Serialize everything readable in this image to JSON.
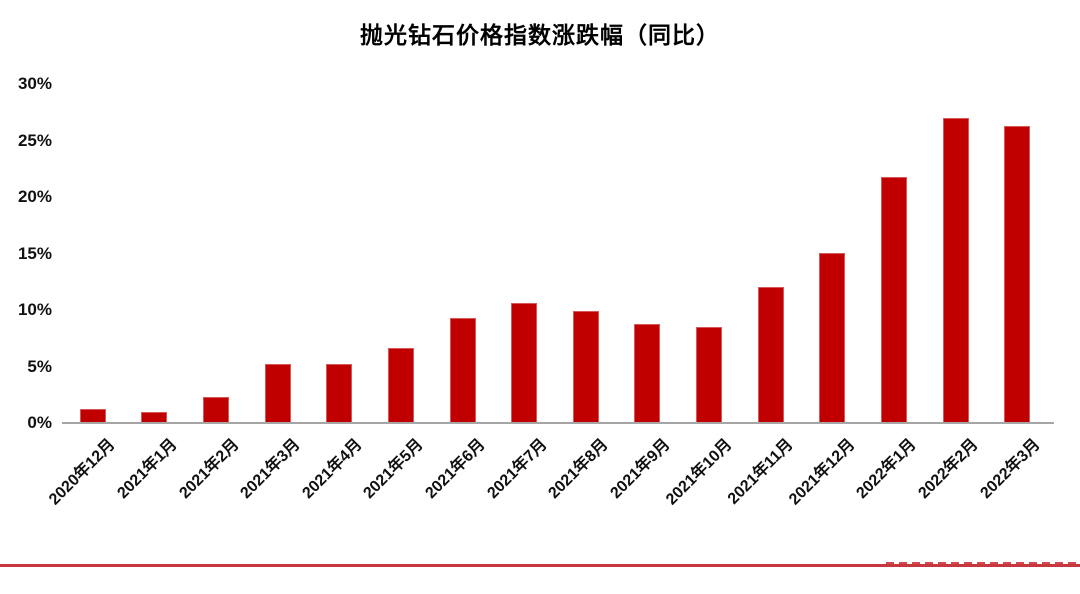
{
  "chart_data": {
    "type": "bar",
    "title": "抛光钻石价格指数涨跌幅（同比）",
    "categories": [
      "2020年12月",
      "2021年1月",
      "2021年2月",
      "2021年3月",
      "2021年4月",
      "2021年5月",
      "2021年6月",
      "2021年7月",
      "2021年8月",
      "2021年9月",
      "2021年10月",
      "2021年11月",
      "2021年12月",
      "2022年1月",
      "2022年2月",
      "2022年3月"
    ],
    "values": [
      1.2,
      1.0,
      2.3,
      5.2,
      5.2,
      6.6,
      9.3,
      10.6,
      9.9,
      8.8,
      8.5,
      12.0,
      15.0,
      21.8,
      27.0,
      26.3
    ],
    "unit": "%",
    "xlabel": "",
    "ylabel": "",
    "ylim": [
      0,
      30
    ],
    "ytick_labels": [
      "0%",
      "5%",
      "10%",
      "15%",
      "20%",
      "25%",
      "30%"
    ],
    "grid": false,
    "legend": "none",
    "x_label_rotation_deg": 45,
    "bar_color": "#C00000",
    "axis_line_color": "#A6A6A6"
  },
  "footer": {
    "divider_color": "#C8373D"
  }
}
